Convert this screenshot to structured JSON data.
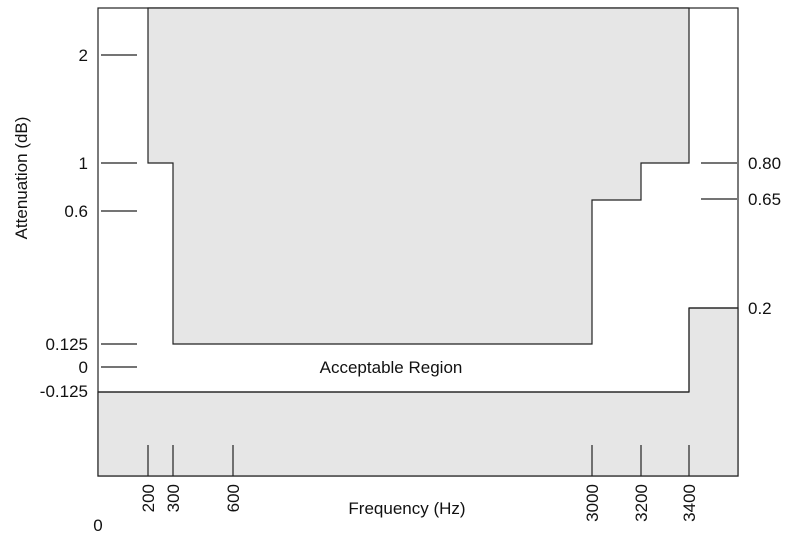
{
  "chart_data": {
    "type": "area",
    "title": "",
    "xlabel": "Frequency (Hz)",
    "ylabel": "Attenuation (dB)",
    "x_ticks": [
      "0",
      "200",
      "300",
      "600",
      "3000",
      "3200",
      "3400"
    ],
    "y_ticks_left": [
      "2",
      "1",
      "0.6",
      "0.125",
      "0",
      "-0.125"
    ],
    "y_ticks_right": [
      "0.80",
      "0.65",
      "0.2"
    ],
    "region_label": "Acceptable Region",
    "upper_mask": [
      {
        "x": 200,
        "y": 1.0
      },
      {
        "x": 300,
        "y": 0.125
      },
      {
        "x": 3000,
        "y": 0.65
      },
      {
        "x": 3200,
        "y": 0.8
      },
      {
        "x": 3400,
        "y": null
      }
    ],
    "lower_mask": [
      {
        "x": 0,
        "y": -0.125
      },
      {
        "x": 3400,
        "y": 0.2
      }
    ],
    "colors": {
      "mask_fill": "#e6e6e6",
      "line": "#222222",
      "background": "#ffffff"
    }
  }
}
